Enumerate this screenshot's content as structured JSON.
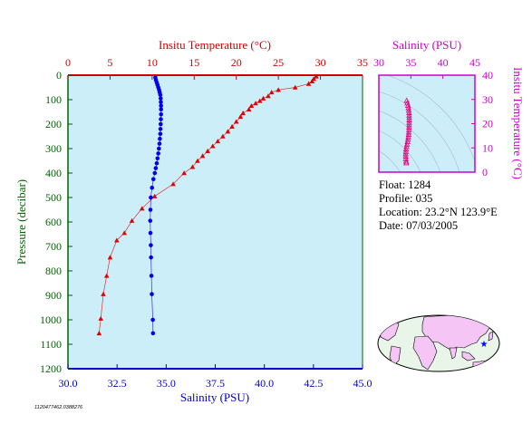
{
  "chart_data": [
    {
      "type": "line",
      "top_axis_label": "Insitu Temperature (°C)",
      "bottom_axis_label": "Salinity (PSU)",
      "ylabel": "Pressure (decibar)",
      "temp_lim": [
        0,
        35
      ],
      "sal_lim": [
        30.0,
        45.0
      ],
      "ylim": [
        0,
        1200
      ],
      "y_reversed": true,
      "temp_ticks": [
        "0",
        "5",
        "10",
        "15",
        "20",
        "25",
        "30",
        "35"
      ],
      "sal_ticks": [
        "30.0",
        "32.5",
        "35.0",
        "37.5",
        "40.0",
        "42.5",
        "45.0"
      ],
      "y_ticks": [
        "0",
        "100",
        "200",
        "300",
        "400",
        "500",
        "600",
        "700",
        "800",
        "900",
        "1000",
        "1100",
        "1200"
      ],
      "series": [
        {
          "axis": "temperature",
          "color": "#e00000",
          "marker": "triangle",
          "points": [
            [
              29.5,
              5
            ],
            [
              29.2,
              15
            ],
            [
              29.0,
              25
            ],
            [
              28.6,
              35
            ],
            [
              27.0,
              50
            ],
            [
              25.0,
              60
            ],
            [
              24.2,
              70
            ],
            [
              23.8,
              85
            ],
            [
              23.2,
              95
            ],
            [
              22.8,
              105
            ],
            [
              22.3,
              115
            ],
            [
              21.8,
              125
            ],
            [
              21.5,
              140
            ],
            [
              20.8,
              155
            ],
            [
              20.5,
              170
            ],
            [
              20.0,
              190
            ],
            [
              19.5,
              210
            ],
            [
              19.0,
              230
            ],
            [
              18.4,
              250
            ],
            [
              17.8,
              270
            ],
            [
              17.2,
              290
            ],
            [
              16.6,
              310
            ],
            [
              16.0,
              330
            ],
            [
              15.4,
              350
            ],
            [
              14.8,
              375
            ],
            [
              13.8,
              400
            ],
            [
              12.5,
              445
            ],
            [
              10.3,
              495
            ],
            [
              8.8,
              545
            ],
            [
              7.6,
              595
            ],
            [
              6.7,
              645
            ],
            [
              5.8,
              675
            ],
            [
              5.0,
              745
            ],
            [
              4.6,
              820
            ],
            [
              4.2,
              895
            ],
            [
              3.9,
              995
            ],
            [
              3.7,
              1055
            ]
          ]
        },
        {
          "axis": "salinity",
          "color": "#0000ee",
          "marker": "circle",
          "points": [
            [
              34.45,
              10
            ],
            [
              34.48,
              20
            ],
            [
              34.52,
              30
            ],
            [
              34.56,
              40
            ],
            [
              34.6,
              50
            ],
            [
              34.64,
              60
            ],
            [
              34.67,
              70
            ],
            [
              34.7,
              80
            ],
            [
              34.72,
              95
            ],
            [
              34.73,
              110
            ],
            [
              34.74,
              125
            ],
            [
              34.74,
              140
            ],
            [
              34.74,
              160
            ],
            [
              34.73,
              180
            ],
            [
              34.72,
              200
            ],
            [
              34.71,
              220
            ],
            [
              34.7,
              240
            ],
            [
              34.68,
              260
            ],
            [
              34.66,
              280
            ],
            [
              34.63,
              300
            ],
            [
              34.6,
              320
            ],
            [
              34.56,
              340
            ],
            [
              34.52,
              360
            ],
            [
              34.47,
              380
            ],
            [
              34.42,
              400
            ],
            [
              34.35,
              425
            ],
            [
              34.28,
              460
            ],
            [
              34.22,
              500
            ],
            [
              34.2,
              550
            ],
            [
              34.19,
              595
            ],
            [
              34.2,
              645
            ],
            [
              34.22,
              695
            ],
            [
              34.23,
              745
            ],
            [
              34.25,
              820
            ],
            [
              34.27,
              895
            ],
            [
              34.32,
              1000
            ],
            [
              34.33,
              1055
            ]
          ]
        }
      ]
    },
    {
      "type": "scatter",
      "xlabel": "Salinity (PSU)",
      "ylabel": "Insitu Temperature (°C)",
      "xlim": [
        30,
        45
      ],
      "ylim": [
        0,
        40
      ],
      "x_ticks": [
        "30",
        "35",
        "40",
        "45"
      ],
      "y_ticks": [
        "0",
        "10",
        "20",
        "30",
        "40"
      ],
      "series": [
        {
          "color": "#e0007a",
          "marker": "triangle",
          "points": [
            [
              34.35,
              29.5
            ],
            [
              34.45,
              28.5
            ],
            [
              34.55,
              27.5
            ],
            [
              34.62,
              26.5
            ],
            [
              34.68,
              25.5
            ],
            [
              34.72,
              24.5
            ],
            [
              34.74,
              23.5
            ],
            [
              34.75,
              22.5
            ],
            [
              34.75,
              21.5
            ],
            [
              34.74,
              20.5
            ],
            [
              34.73,
              19.5
            ],
            [
              34.72,
              18.5
            ],
            [
              34.7,
              17.5
            ],
            [
              34.68,
              16.5
            ],
            [
              34.65,
              15.5
            ],
            [
              34.6,
              14.5
            ],
            [
              34.55,
              13.5
            ],
            [
              34.48,
              12.5
            ],
            [
              34.4,
              11.5
            ],
            [
              34.32,
              10.5
            ],
            [
              34.25,
              9.5
            ],
            [
              34.22,
              8.5
            ],
            [
              34.2,
              7.5
            ],
            [
              34.2,
              6.5
            ],
            [
              34.22,
              5.5
            ],
            [
              34.25,
              4.5
            ],
            [
              34.3,
              3.8
            ]
          ]
        }
      ]
    }
  ],
  "info": {
    "float": "Float:  1284",
    "profile": "Profile:  035",
    "location": "Location:  23.2°N  123.9°E",
    "date": "Date:  07/03/2005"
  },
  "map_marker": {
    "lat": 23.2,
    "lon": 123.9,
    "symbol": "★"
  },
  "footer_id": "1120477462.0388276",
  "colors": {
    "plot_bg": "#cceef8",
    "temp": "#cc0000",
    "salinity": "#0000cc",
    "pressure_axis": "#006400",
    "ts_axis": "#cc00cc",
    "land": "#f5c6f5",
    "ocean": "#e8f5e8"
  }
}
